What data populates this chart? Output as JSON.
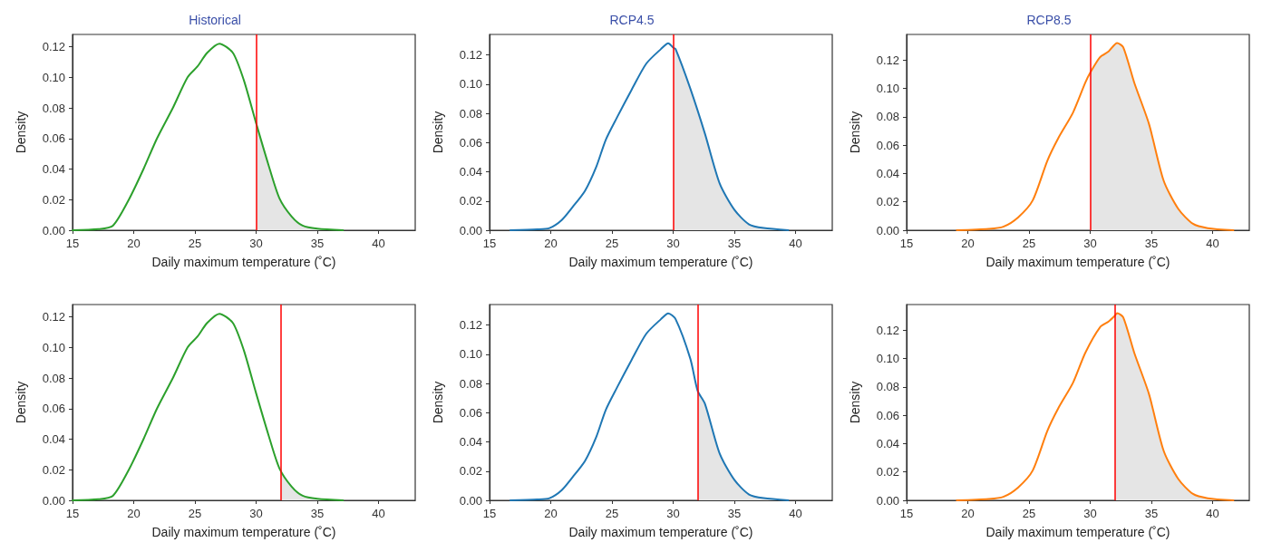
{
  "chart_data": [
    {
      "type": "line",
      "title": "Historical",
      "xlabel": "Daily maximum temperature (˚C)",
      "ylabel": "Density",
      "xlim": [
        15,
        43
      ],
      "ylim": [
        0,
        0.128
      ],
      "xticks": [
        15,
        20,
        25,
        30,
        35,
        40
      ],
      "yticks": [
        {
          "value": 0,
          "label": "0.00"
        },
        {
          "value": 0.02,
          "label": "0.02"
        },
        {
          "value": 0.04,
          "label": "0.04"
        },
        {
          "value": 0.06,
          "label": "0.06"
        },
        {
          "value": 0.08,
          "label": "0.08"
        },
        {
          "value": 0.1,
          "label": "0.10"
        },
        {
          "value": 0.12,
          "label": "0.12"
        }
      ],
      "grid": false,
      "marker": "none",
      "line_style": "solid",
      "series": [
        {
          "type": "line",
          "color": "#2ca02c",
          "x": [
            15,
            17.1,
            18.3,
            19.6,
            20.8,
            21.9,
            23.2,
            24.4,
            25.2,
            26,
            27,
            28.1,
            29,
            30,
            31,
            31.9,
            32.9,
            33.8,
            35,
            37.1
          ],
          "values": [
            0,
            0.0007,
            0.003,
            0.02,
            0.04,
            0.06,
            0.08,
            0.1,
            0.107,
            0.116,
            0.122,
            0.116,
            0.098,
            0.07,
            0.043,
            0.021,
            0.009,
            0.003,
            0.001,
            0
          ]
        },
        {
          "type": "area",
          "color": "#e5e5e5",
          "x": [
            30,
            31,
            31.9,
            32.9,
            33.8,
            35,
            37.1
          ],
          "values": [
            0.07,
            0.043,
            0.021,
            0.009,
            0.003,
            0.001,
            0
          ]
        }
      ],
      "ref_lines": [
        {
          "axis": "x",
          "value": 30,
          "color": "#ff0000"
        }
      ]
    },
    {
      "type": "line",
      "title": "RCP4.5",
      "xlabel": "Daily maximum temperature (˚C)",
      "ylabel": "Density",
      "xlim": [
        15,
        43
      ],
      "ylim": [
        0,
        0.134
      ],
      "xticks": [
        15,
        20,
        25,
        30,
        35,
        40
      ],
      "yticks": [
        {
          "value": 0,
          "label": "0.00"
        },
        {
          "value": 0.02,
          "label": "0.02"
        },
        {
          "value": 0.04,
          "label": "0.04"
        },
        {
          "value": 0.06,
          "label": "0.06"
        },
        {
          "value": 0.08,
          "label": "0.08"
        },
        {
          "value": 0.1,
          "label": "0.10"
        },
        {
          "value": 0.12,
          "label": "0.12"
        }
      ],
      "grid": false,
      "marker": "none",
      "line_style": "solid",
      "series": [
        {
          "type": "line",
          "color": "#1f77b4",
          "x": [
            16.7,
            18.9,
            19.9,
            20.9,
            21.8,
            22.8,
            23.7,
            24.5,
            25.4,
            26.6,
            27.8,
            29,
            29.6,
            30,
            30.2,
            31.4,
            32.6,
            33.8,
            35,
            36.2,
            37.4,
            39.4
          ],
          "values": [
            0,
            0.0006,
            0.0015,
            0.007,
            0.016,
            0.027,
            0.043,
            0.062,
            0.077,
            0.096,
            0.114,
            0.124,
            0.128,
            0.125,
            0.124,
            0.097,
            0.066,
            0.032,
            0.014,
            0.004,
            0.0015,
            0
          ]
        },
        {
          "type": "area",
          "color": "#e5e5e5",
          "x": [
            30,
            30.2,
            31.4,
            32.6,
            33.8,
            35,
            36.2,
            37.4,
            39.4
          ],
          "values": [
            0.125,
            0.124,
            0.097,
            0.066,
            0.032,
            0.014,
            0.004,
            0.0015,
            0
          ]
        }
      ],
      "ref_lines": [
        {
          "axis": "x",
          "value": 30,
          "color": "#ff0000"
        }
      ]
    },
    {
      "type": "line",
      "title": "RCP8.5",
      "xlabel": "Daily maximum temperature (˚C)",
      "ylabel": "Density",
      "xlim": [
        15,
        43
      ],
      "ylim": [
        0,
        0.138
      ],
      "xticks": [
        15,
        20,
        25,
        30,
        35,
        40
      ],
      "yticks": [
        {
          "value": 0,
          "label": "0.00"
        },
        {
          "value": 0.02,
          "label": "0.02"
        },
        {
          "value": 0.04,
          "label": "0.04"
        },
        {
          "value": 0.06,
          "label": "0.06"
        },
        {
          "value": 0.08,
          "label": "0.08"
        },
        {
          "value": 0.1,
          "label": "0.10"
        },
        {
          "value": 0.12,
          "label": "0.12"
        }
      ],
      "grid": false,
      "marker": "none",
      "line_style": "solid",
      "series": [
        {
          "type": "line",
          "color": "#ff7f0e",
          "x": [
            19.1,
            21.7,
            22.9,
            24.1,
            25.3,
            26.5,
            27.4,
            28.6,
            29.6,
            30,
            30.8,
            31.5,
            32.2,
            32.7,
            33.6,
            34.8,
            36,
            37.2,
            38.4,
            39.6,
            41.7
          ],
          "values": [
            0,
            0.001,
            0.0025,
            0.009,
            0.021,
            0.049,
            0.065,
            0.083,
            0.104,
            0.111,
            0.122,
            0.126,
            0.132,
            0.129,
            0.104,
            0.075,
            0.035,
            0.015,
            0.0045,
            0.0015,
            0
          ]
        },
        {
          "type": "area",
          "color": "#e5e5e5",
          "x": [
            30,
            30.8,
            31.5,
            32.2,
            32.7,
            33.6,
            34.8,
            36,
            37.2,
            38.4,
            39.6,
            41.7
          ],
          "values": [
            0.111,
            0.122,
            0.126,
            0.132,
            0.129,
            0.104,
            0.075,
            0.035,
            0.015,
            0.0045,
            0.0015,
            0
          ]
        }
      ],
      "ref_lines": [
        {
          "axis": "x",
          "value": 30,
          "color": "#ff0000"
        }
      ]
    },
    {
      "type": "line",
      "xlabel": "Daily maximum temperature (˚C)",
      "ylabel": "Density",
      "xlim": [
        15,
        43
      ],
      "ylim": [
        0,
        0.128
      ],
      "xticks": [
        15,
        20,
        25,
        30,
        35,
        40
      ],
      "yticks": [
        {
          "value": 0,
          "label": "0.00"
        },
        {
          "value": 0.02,
          "label": "0.02"
        },
        {
          "value": 0.04,
          "label": "0.04"
        },
        {
          "value": 0.06,
          "label": "0.06"
        },
        {
          "value": 0.08,
          "label": "0.08"
        },
        {
          "value": 0.1,
          "label": "0.10"
        },
        {
          "value": 0.12,
          "label": "0.12"
        }
      ],
      "grid": false,
      "marker": "none",
      "line_style": "solid",
      "series": [
        {
          "type": "line",
          "color": "#2ca02c",
          "x": [
            15,
            17.1,
            18.3,
            19.6,
            20.8,
            21.9,
            23.2,
            24.4,
            25.2,
            26,
            27,
            28.1,
            29,
            30,
            31,
            31.9,
            32.9,
            33.8,
            35,
            37.1
          ],
          "values": [
            0,
            0.0007,
            0.003,
            0.02,
            0.04,
            0.06,
            0.08,
            0.1,
            0.107,
            0.116,
            0.122,
            0.116,
            0.098,
            0.07,
            0.043,
            0.021,
            0.009,
            0.003,
            0.001,
            0
          ]
        },
        {
          "type": "area",
          "color": "#e5e5e5",
          "x": [
            32,
            32.9,
            33.8,
            35,
            37.1
          ],
          "values": [
            0.019,
            0.009,
            0.003,
            0.001,
            0
          ]
        }
      ],
      "ref_lines": [
        {
          "axis": "x",
          "value": 32,
          "color": "#ff0000"
        }
      ]
    },
    {
      "type": "line",
      "xlabel": "Daily maximum temperature (˚C)",
      "ylabel": "Density",
      "xlim": [
        15,
        43
      ],
      "ylim": [
        0,
        0.134
      ],
      "xticks": [
        15,
        20,
        25,
        30,
        35,
        40
      ],
      "yticks": [
        {
          "value": 0,
          "label": "0.00"
        },
        {
          "value": 0.02,
          "label": "0.02"
        },
        {
          "value": 0.04,
          "label": "0.04"
        },
        {
          "value": 0.06,
          "label": "0.06"
        },
        {
          "value": 0.08,
          "label": "0.08"
        },
        {
          "value": 0.1,
          "label": "0.10"
        },
        {
          "value": 0.12,
          "label": "0.12"
        }
      ],
      "grid": false,
      "marker": "none",
      "line_style": "solid",
      "series": [
        {
          "type": "line",
          "color": "#1f77b4",
          "x": [
            16.7,
            18.9,
            19.9,
            20.9,
            21.8,
            22.8,
            23.7,
            24.5,
            25.4,
            26.6,
            27.8,
            29,
            29.6,
            30.2,
            31.4,
            32,
            32.6,
            33.8,
            35,
            36.2,
            37.4,
            39.4
          ],
          "values": [
            0,
            0.0006,
            0.0015,
            0.007,
            0.016,
            0.027,
            0.043,
            0.062,
            0.077,
            0.096,
            0.114,
            0.124,
            0.128,
            0.124,
            0.097,
            0.075,
            0.066,
            0.032,
            0.014,
            0.004,
            0.0015,
            0
          ]
        },
        {
          "type": "area",
          "color": "#e5e5e5",
          "x": [
            32,
            32.6,
            33.8,
            35,
            36.2,
            37.4,
            39.4
          ],
          "values": [
            0.075,
            0.066,
            0.032,
            0.014,
            0.004,
            0.0015,
            0
          ]
        }
      ],
      "ref_lines": [
        {
          "axis": "x",
          "value": 32,
          "color": "#ff0000"
        }
      ]
    },
    {
      "type": "line",
      "xlabel": "Daily maximum temperature (˚C)",
      "ylabel": "Density",
      "xlim": [
        15,
        43
      ],
      "ylim": [
        0,
        0.138
      ],
      "xticks": [
        15,
        20,
        25,
        30,
        35,
        40
      ],
      "yticks": [
        {
          "value": 0,
          "label": "0.00"
        },
        {
          "value": 0.02,
          "label": "0.02"
        },
        {
          "value": 0.04,
          "label": "0.04"
        },
        {
          "value": 0.06,
          "label": "0.06"
        },
        {
          "value": 0.08,
          "label": "0.08"
        },
        {
          "value": 0.1,
          "label": "0.10"
        },
        {
          "value": 0.12,
          "label": "0.12"
        }
      ],
      "grid": false,
      "marker": "none",
      "line_style": "solid",
      "series": [
        {
          "type": "line",
          "color": "#ff7f0e",
          "x": [
            19.1,
            21.7,
            22.9,
            24.1,
            25.3,
            26.5,
            27.4,
            28.6,
            29.6,
            30.8,
            31.5,
            32,
            32.2,
            32.7,
            33.6,
            34.8,
            36,
            37.2,
            38.4,
            39.6,
            41.7
          ],
          "values": [
            0,
            0.001,
            0.0025,
            0.009,
            0.021,
            0.049,
            0.065,
            0.083,
            0.104,
            0.122,
            0.126,
            0.13,
            0.132,
            0.129,
            0.104,
            0.075,
            0.035,
            0.015,
            0.0045,
            0.0015,
            0
          ]
        },
        {
          "type": "area",
          "color": "#e5e5e5",
          "x": [
            32,
            32.2,
            32.7,
            33.6,
            34.8,
            36,
            37.2,
            38.4,
            39.6,
            41.7
          ],
          "values": [
            0.13,
            0.132,
            0.129,
            0.104,
            0.075,
            0.035,
            0.015,
            0.0045,
            0.0015,
            0
          ]
        }
      ],
      "ref_lines": [
        {
          "axis": "x",
          "value": 32,
          "color": "#ff0000"
        }
      ]
    }
  ]
}
